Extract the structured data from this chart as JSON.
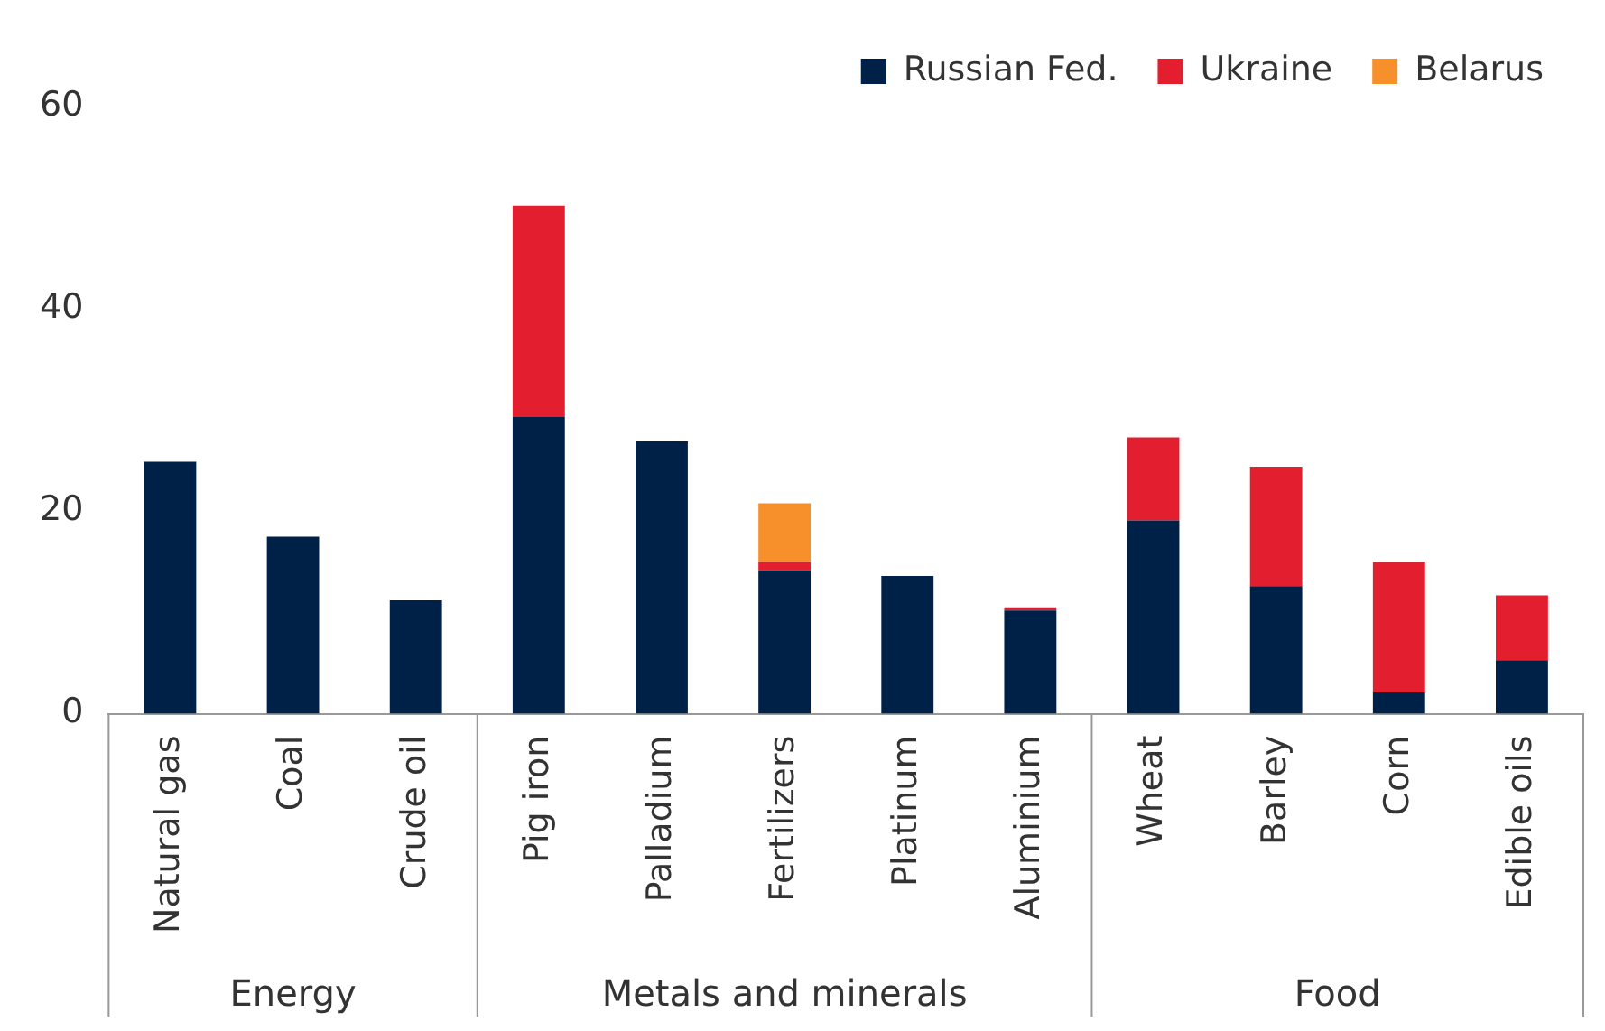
{
  "chart_data": {
    "type": "bar",
    "stacked": true,
    "categories": [
      "Natural gas",
      "Coal",
      "Crude oil",
      "Pig iron",
      "Palladium",
      "Fertilizers",
      "Platinum",
      "Aluminium",
      "Wheat",
      "Barley",
      "Corn",
      "Edible oils"
    ],
    "series": [
      {
        "name": "Russian Fed.",
        "color": "#002147",
        "values": [
          24.9,
          17.5,
          11.2,
          29.3,
          26.9,
          14.2,
          13.6,
          10.2,
          19.1,
          12.6,
          2.1,
          5.3
        ]
      },
      {
        "name": "Ukraine",
        "color": "#e31e2f",
        "values": [
          null,
          null,
          null,
          20.9,
          null,
          0.8,
          null,
          0.3,
          8.2,
          11.8,
          12.9,
          6.4
        ]
      },
      {
        "name": "Belarus",
        "color": "#f7902a",
        "values": [
          null,
          null,
          null,
          null,
          null,
          5.8,
          null,
          null,
          null,
          null,
          null,
          null
        ]
      }
    ],
    "ylim": [
      0,
      60
    ],
    "yticks": [
      0,
      20,
      40,
      60
    ],
    "grid": false,
    "legend": "top right",
    "annotations": [
      "Energy",
      "Metals and minerals",
      "Food"
    ]
  }
}
